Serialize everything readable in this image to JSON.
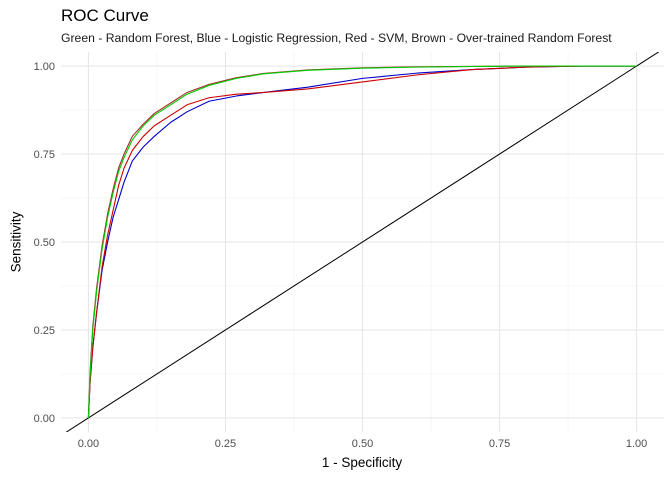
{
  "chart_data": {
    "type": "line",
    "title": "ROC Curve",
    "subtitle": "Green - Random Forest, Blue - Logistic Regression, Red - SVM, Brown - Over-trained Random Forest",
    "xlabel": "1 - Specificity",
    "ylabel": "Sensitivity",
    "xlim": [
      -0.05,
      1.05
    ],
    "ylim": [
      -0.04,
      1.04
    ],
    "x_ticks": [
      "0.00",
      "0.25",
      "0.50",
      "0.75",
      "1.00"
    ],
    "y_ticks": [
      "0.00",
      "0.25",
      "0.50",
      "0.75",
      "1.00"
    ],
    "grid": true,
    "legend": "none",
    "series": [
      {
        "color": "#00cc00",
        "x": [
          0,
          0.003,
          0.008,
          0.015,
          0.025,
          0.035,
          0.045,
          0.055,
          0.065,
          0.08,
          0.1,
          0.12,
          0.15,
          0.18,
          0.22,
          0.27,
          0.32,
          0.4,
          0.5,
          0.6,
          0.7,
          0.8,
          0.9,
          1.0
        ],
        "y": [
          0,
          0.12,
          0.25,
          0.36,
          0.48,
          0.57,
          0.64,
          0.7,
          0.74,
          0.79,
          0.83,
          0.86,
          0.89,
          0.92,
          0.945,
          0.965,
          0.978,
          0.988,
          0.994,
          0.997,
          0.999,
          1.0,
          1.0,
          1.0
        ]
      },
      {
        "color": "#0000cc",
        "x": [
          0,
          0.003,
          0.008,
          0.015,
          0.025,
          0.035,
          0.045,
          0.055,
          0.065,
          0.08,
          0.1,
          0.12,
          0.15,
          0.18,
          0.22,
          0.27,
          0.32,
          0.4,
          0.5,
          0.6,
          0.7,
          0.8,
          0.9,
          1.0
        ],
        "y": [
          0,
          0.1,
          0.2,
          0.3,
          0.42,
          0.5,
          0.57,
          0.62,
          0.67,
          0.73,
          0.77,
          0.8,
          0.84,
          0.87,
          0.9,
          0.915,
          0.925,
          0.94,
          0.965,
          0.98,
          0.99,
          0.997,
          1.0,
          1.0
        ]
      },
      {
        "color": "#cc0000",
        "x": [
          0,
          0.003,
          0.008,
          0.015,
          0.025,
          0.035,
          0.045,
          0.055,
          0.065,
          0.08,
          0.1,
          0.12,
          0.15,
          0.18,
          0.22,
          0.27,
          0.32,
          0.4,
          0.5,
          0.6,
          0.7,
          0.8,
          0.9,
          1.0
        ],
        "y": [
          0,
          0.1,
          0.2,
          0.3,
          0.43,
          0.52,
          0.59,
          0.66,
          0.71,
          0.76,
          0.8,
          0.83,
          0.86,
          0.89,
          0.91,
          0.92,
          0.925,
          0.935,
          0.955,
          0.975,
          0.99,
          0.997,
          1.0,
          1.0
        ]
      },
      {
        "color": "#a52a2a",
        "x": [
          0,
          0.003,
          0.008,
          0.015,
          0.025,
          0.035,
          0.045,
          0.055,
          0.065,
          0.08,
          0.1,
          0.12,
          0.15,
          0.18,
          0.22,
          0.27,
          0.32,
          0.4,
          0.5,
          0.6,
          0.7,
          0.8,
          0.9,
          1.0
        ],
        "y": [
          0,
          0.13,
          0.26,
          0.37,
          0.49,
          0.58,
          0.65,
          0.71,
          0.75,
          0.8,
          0.835,
          0.865,
          0.895,
          0.925,
          0.948,
          0.967,
          0.979,
          0.989,
          0.995,
          0.998,
          0.999,
          1.0,
          1.0,
          1.0
        ]
      }
    ],
    "reference_line": {
      "color": "#000000",
      "intercept": 0,
      "slope": 1
    }
  }
}
